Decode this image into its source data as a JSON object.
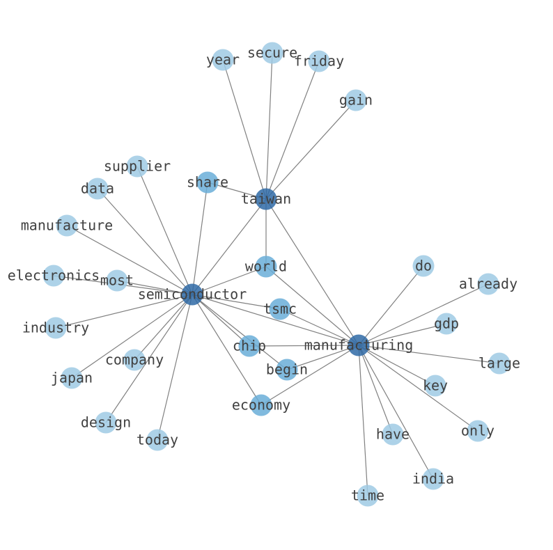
{
  "colors": {
    "edge": "#808080",
    "hub": "#2f6aa6",
    "mid": "#6aaed8",
    "leaf": "#9fcae4",
    "label": "#404040"
  },
  "nodes": [
    {
      "id": "semiconductor",
      "level": "hub"
    },
    {
      "id": "taiwan",
      "level": "hub"
    },
    {
      "id": "manufacturing",
      "level": "hub"
    },
    {
      "id": "world",
      "level": "mid"
    },
    {
      "id": "tsmc",
      "level": "mid"
    },
    {
      "id": "chip",
      "level": "mid"
    },
    {
      "id": "begin",
      "level": "mid"
    },
    {
      "id": "economy",
      "level": "mid"
    },
    {
      "id": "share",
      "level": "mid"
    },
    {
      "id": "year",
      "level": "leaf"
    },
    {
      "id": "secure",
      "level": "leaf"
    },
    {
      "id": "friday",
      "level": "leaf"
    },
    {
      "id": "gain",
      "level": "leaf"
    },
    {
      "id": "supplier",
      "level": "leaf"
    },
    {
      "id": "data",
      "level": "leaf"
    },
    {
      "id": "manufacture",
      "level": "leaf"
    },
    {
      "id": "electronics",
      "level": "leaf"
    },
    {
      "id": "most",
      "level": "leaf"
    },
    {
      "id": "industry",
      "level": "leaf"
    },
    {
      "id": "company",
      "level": "leaf"
    },
    {
      "id": "japan",
      "level": "leaf"
    },
    {
      "id": "design",
      "level": "leaf"
    },
    {
      "id": "today",
      "level": "leaf"
    },
    {
      "id": "do",
      "level": "leaf"
    },
    {
      "id": "already",
      "level": "leaf"
    },
    {
      "id": "gdp",
      "level": "leaf"
    },
    {
      "id": "large",
      "level": "leaf"
    },
    {
      "id": "key",
      "level": "leaf"
    },
    {
      "id": "only",
      "level": "leaf"
    },
    {
      "id": "have",
      "level": "leaf"
    },
    {
      "id": "india",
      "level": "leaf"
    },
    {
      "id": "time",
      "level": "leaf"
    }
  ],
  "edges": [
    [
      "semiconductor",
      "supplier"
    ],
    [
      "semiconductor",
      "data"
    ],
    [
      "semiconductor",
      "manufacture"
    ],
    [
      "semiconductor",
      "electronics"
    ],
    [
      "semiconductor",
      "most"
    ],
    [
      "semiconductor",
      "industry"
    ],
    [
      "semiconductor",
      "company"
    ],
    [
      "semiconductor",
      "japan"
    ],
    [
      "semiconductor",
      "design"
    ],
    [
      "semiconductor",
      "today"
    ],
    [
      "semiconductor",
      "share"
    ],
    [
      "semiconductor",
      "taiwan"
    ],
    [
      "semiconductor",
      "world"
    ],
    [
      "semiconductor",
      "tsmc"
    ],
    [
      "semiconductor",
      "chip"
    ],
    [
      "semiconductor",
      "begin"
    ],
    [
      "semiconductor",
      "economy"
    ],
    [
      "semiconductor",
      "manufacturing"
    ],
    [
      "taiwan",
      "year"
    ],
    [
      "taiwan",
      "secure"
    ],
    [
      "taiwan",
      "friday"
    ],
    [
      "taiwan",
      "gain"
    ],
    [
      "taiwan",
      "share"
    ],
    [
      "taiwan",
      "world"
    ],
    [
      "taiwan",
      "manufacturing"
    ],
    [
      "manufacturing",
      "world"
    ],
    [
      "manufacturing",
      "tsmc"
    ],
    [
      "manufacturing",
      "chip"
    ],
    [
      "manufacturing",
      "begin"
    ],
    [
      "manufacturing",
      "economy"
    ],
    [
      "manufacturing",
      "do"
    ],
    [
      "manufacturing",
      "already"
    ],
    [
      "manufacturing",
      "gdp"
    ],
    [
      "manufacturing",
      "large"
    ],
    [
      "manufacturing",
      "key"
    ],
    [
      "manufacturing",
      "only"
    ],
    [
      "manufacturing",
      "have"
    ],
    [
      "manufacturing",
      "india"
    ],
    [
      "manufacturing",
      "time"
    ]
  ]
}
